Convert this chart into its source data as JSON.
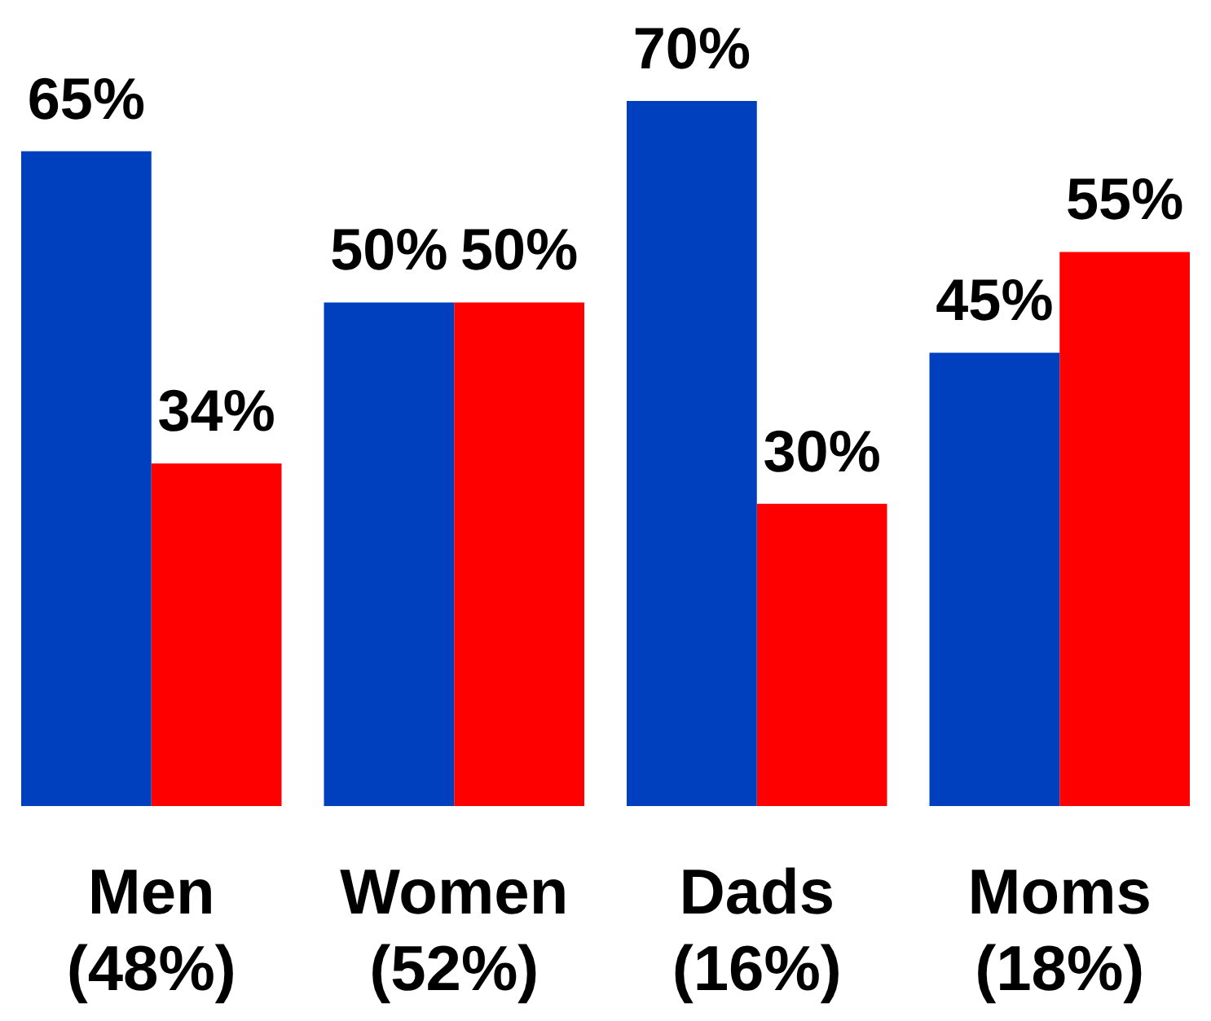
{
  "chart_data": {
    "type": "bar",
    "categories": [
      "Men (48%)",
      "Women (52%)",
      "Dads (16%)",
      "Moms (18%)"
    ],
    "series": [
      {
        "color": "#0040bf",
        "values": [
          65,
          50,
          70,
          45
        ],
        "value_labels": [
          "65%",
          "50%",
          "70%",
          "45%"
        ]
      },
      {
        "color": "#ff0000",
        "values": [
          34,
          50,
          30,
          55
        ],
        "value_labels": [
          "34%",
          "50%",
          "30%",
          "55%"
        ]
      }
    ]
  }
}
